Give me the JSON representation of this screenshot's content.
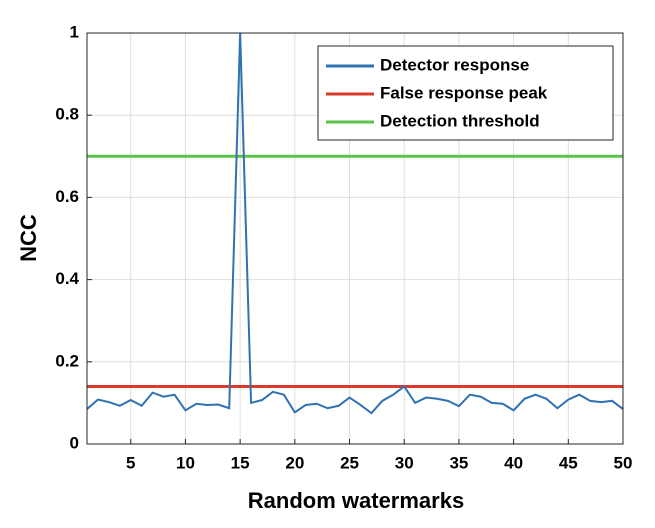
{
  "chart_data": {
    "type": "line",
    "xlabel": "Random watermarks",
    "ylabel": "NCC",
    "x": [
      1,
      2,
      3,
      4,
      5,
      6,
      7,
      8,
      9,
      10,
      11,
      12,
      13,
      14,
      15,
      16,
      17,
      18,
      19,
      20,
      21,
      22,
      23,
      24,
      25,
      26,
      27,
      28,
      29,
      30,
      31,
      32,
      33,
      34,
      35,
      36,
      37,
      38,
      39,
      40,
      41,
      42,
      43,
      44,
      45,
      46,
      47,
      48,
      49,
      50
    ],
    "series": [
      {
        "name": "Detector response",
        "color": "#2f72b3",
        "values": [
          0.085,
          0.108,
          0.102,
          0.093,
          0.107,
          0.093,
          0.125,
          0.115,
          0.12,
          0.082,
          0.098,
          0.095,
          0.096,
          0.087,
          1.0,
          0.1,
          0.107,
          0.127,
          0.12,
          0.077,
          0.095,
          0.098,
          0.087,
          0.093,
          0.113,
          0.095,
          0.075,
          0.105,
          0.12,
          0.14,
          0.1,
          0.113,
          0.11,
          0.105,
          0.092,
          0.12,
          0.115,
          0.1,
          0.098,
          0.082,
          0.11,
          0.12,
          0.11,
          0.087,
          0.108,
          0.12,
          0.105,
          0.102,
          0.105,
          0.085
        ]
      }
    ],
    "hlines": [
      {
        "name": "False response peak",
        "color": "#d93a2b",
        "value": 0.14
      },
      {
        "name": "Detection threshold",
        "color": "#5cc24a",
        "value": 0.7
      }
    ],
    "xlim": [
      1,
      50
    ],
    "xticks": [
      5,
      10,
      15,
      20,
      25,
      30,
      35,
      40,
      45,
      50
    ],
    "ylim": [
      0,
      1
    ],
    "yticks": [
      0,
      0.2,
      0.4,
      0.6,
      0.8,
      1
    ],
    "grid": true,
    "legend": "northeast"
  }
}
